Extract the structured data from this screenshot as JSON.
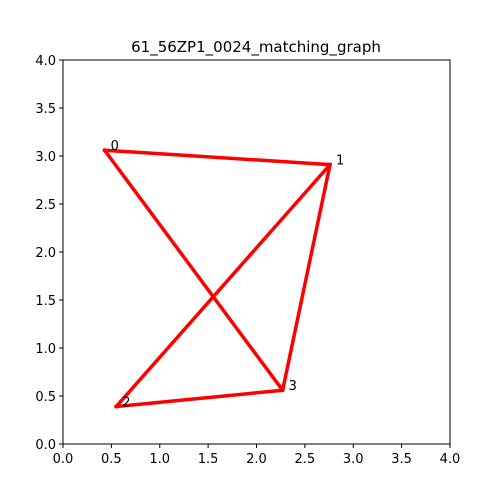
{
  "chart_data": {
    "type": "network-graph",
    "title": "61_56ZP1_0024_matching_graph",
    "xlabel": "",
    "ylabel": "",
    "xlim": [
      0.0,
      4.0
    ],
    "ylim": [
      0.0,
      4.0
    ],
    "xticks": [
      "0.0",
      "0.5",
      "1.0",
      "1.5",
      "2.0",
      "2.5",
      "3.0",
      "3.5",
      "4.0"
    ],
    "yticks": [
      "0.0",
      "0.5",
      "1.0",
      "1.5",
      "2.0",
      "2.5",
      "3.0",
      "3.5",
      "4.0"
    ],
    "grid": false,
    "edge_color": "#ff0000",
    "nodes": [
      {
        "id": "0",
        "x": 0.43,
        "y": 3.06
      },
      {
        "id": "1",
        "x": 2.76,
        "y": 2.91
      },
      {
        "id": "2",
        "x": 0.55,
        "y": 0.39
      },
      {
        "id": "3",
        "x": 2.27,
        "y": 0.56
      }
    ],
    "edges": [
      {
        "source": "0",
        "target": "1"
      },
      {
        "source": "0",
        "target": "3"
      },
      {
        "source": "1",
        "target": "2"
      },
      {
        "source": "1",
        "target": "3"
      },
      {
        "source": "2",
        "target": "3"
      }
    ]
  }
}
